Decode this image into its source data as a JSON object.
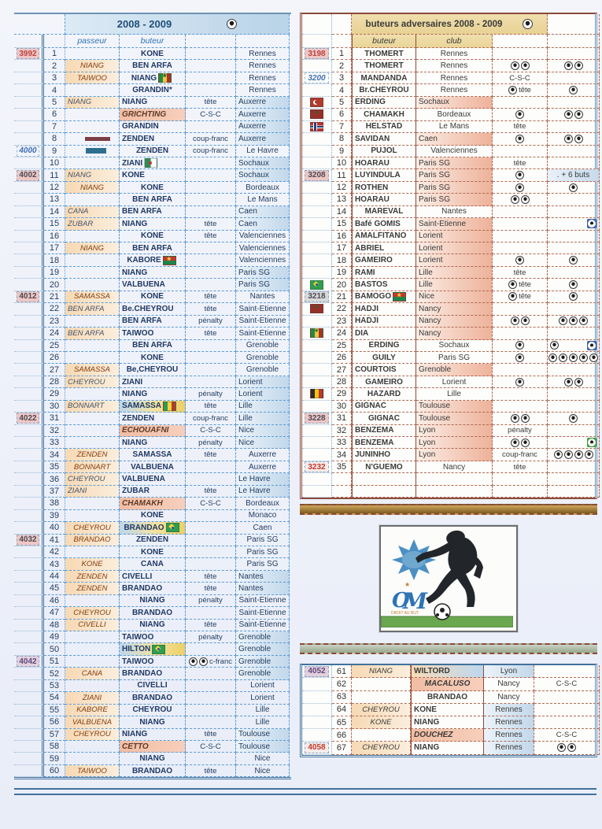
{
  "left_table": {
    "title": "2008 - 2009",
    "headers": {
      "passeur": "passeur",
      "buteur": "buteur"
    },
    "rows": [
      {
        "id": "3992",
        "idc": "r",
        "n": 1,
        "b": "KONE",
        "c": "Rennes"
      },
      {
        "n": 2,
        "p": "NIANG",
        "b": "BEN ARFA",
        "c": "Rennes"
      },
      {
        "n": 3,
        "p": "TAIWOO",
        "b": "NIANG",
        "bf": "sen",
        "c": "Rennes"
      },
      {
        "n": 4,
        "b": "GRANDIN*",
        "c": "Rennes"
      },
      {
        "n": 5,
        "p": "NIANG",
        "pl": 1,
        "b": "NIANG",
        "al": 1,
        "m": "tête",
        "c": "Auxerre",
        "h": 1
      },
      {
        "n": 6,
        "b": "GRICHTING",
        "al": 1,
        "bs": "og",
        "m": "C-S-C",
        "c": "Auxerre",
        "h": 1
      },
      {
        "n": 7,
        "b": "GRANDIN",
        "al": 1,
        "c": "Auxerre",
        "h": 1
      },
      {
        "n": 8,
        "pf": "bar-red",
        "b": "ZENDEN",
        "al": 1,
        "m": "coup-franc",
        "c": "Auxerre",
        "h": 1
      },
      {
        "id": "4000",
        "idc": "b",
        "n": 9,
        "pf": "bar-blue",
        "b": "ZENDEN",
        "m": "coup-franc",
        "c": "Le Havre"
      },
      {
        "n": 10,
        "b": "ZIANI",
        "al": 1,
        "bf": "alg",
        "c": "Sochaux",
        "h": 1
      },
      {
        "id": "4002",
        "idc": "d",
        "n": 11,
        "p": "NIANG",
        "pl": 1,
        "b": "KONE",
        "al": 1,
        "c": "Sochaux",
        "h": 1
      },
      {
        "n": 12,
        "p": "NIANG",
        "b": "KONE",
        "c": "Bordeaux"
      },
      {
        "n": 13,
        "b": "BEN ARFA",
        "c": "Le Mans"
      },
      {
        "n": 14,
        "p": "CANA",
        "pl": 1,
        "b": "BEN ARFA",
        "al": 1,
        "c": "Caen",
        "h": 1
      },
      {
        "n": 15,
        "p": "ZUBAR",
        "pl": 1,
        "b": "NIANG",
        "al": 1,
        "m": "tête",
        "c": "Caen",
        "h": 1
      },
      {
        "n": 16,
        "b": "KONE",
        "m": "tête",
        "c": "Valenciennes"
      },
      {
        "n": 17,
        "p": "NIANG",
        "b": "BEN ARFA",
        "c": "Valenciennes"
      },
      {
        "n": 18,
        "b": "KABORE",
        "bf": "bfa",
        "c": "Valenciennes"
      },
      {
        "n": 19,
        "b": "NIANG",
        "al": 1,
        "c": "Paris SG",
        "h": 1
      },
      {
        "n": 20,
        "b": "VALBUENA",
        "al": 1,
        "c": "Paris SG",
        "h": 1
      },
      {
        "id": "4012",
        "idc": "d",
        "n": 21,
        "p": "SAMASSA",
        "b": "KONE",
        "m": "tête",
        "c": "Nantes"
      },
      {
        "n": 22,
        "p": "BEN ARFA",
        "pl": 1,
        "b": "Be.CHEYROU",
        "al": 1,
        "m": "tête",
        "c": "Saint-Etienne"
      },
      {
        "n": 23,
        "b": "BEN ARFA",
        "al": 1,
        "m": "pénalty",
        "c": "Saint-Etienne"
      },
      {
        "n": 24,
        "p": "BEN ARFA",
        "pl": 1,
        "b": "TAIWOO",
        "al": 1,
        "m": "tête",
        "c": "Saint-Etienne"
      },
      {
        "n": 25,
        "b": "BEN ARFA",
        "c": "Grenoble"
      },
      {
        "n": 26,
        "b": "KONE",
        "c": "Grenoble"
      },
      {
        "n": 27,
        "p": "SAMASSA",
        "b": "Be,CHEYROU",
        "c": "Grenoble"
      },
      {
        "n": 28,
        "p": "CHEYROU",
        "pl": 1,
        "b": "ZIANI",
        "al": 1,
        "c": "Lorient",
        "h": 1
      },
      {
        "n": 29,
        "b": "NIANG",
        "al": 1,
        "m": "pénalty",
        "c": "Lorient",
        "h": 1
      },
      {
        "n": 30,
        "p": "BONNART",
        "pl": 1,
        "b": "SAMASSA",
        "al": 1,
        "bs": "grad",
        "bf": "mli",
        "m": "tête",
        "c": "Lille",
        "h": 1
      },
      {
        "id": "4022",
        "idc": "d",
        "n": 31,
        "b": "ZENDEN",
        "al": 1,
        "m": "coup-franc",
        "c": "Lille",
        "h": 1
      },
      {
        "n": 32,
        "b": "ECHOUAFNI",
        "al": 1,
        "bs": "og",
        "m": "C-S-C",
        "c": "Nice",
        "h": 1
      },
      {
        "n": 33,
        "b": "NIANG",
        "al": 1,
        "m": "pénalty",
        "c": "Nice",
        "h": 1
      },
      {
        "n": 34,
        "p": "ZENDEN",
        "b": "SAMASSA",
        "m": "tête",
        "c": "Auxerre"
      },
      {
        "n": 35,
        "p": "BONNART",
        "b": "VALBUENA",
        "c": "Auxerre"
      },
      {
        "n": 36,
        "p": "CHEYROU",
        "pl": 1,
        "b": "VALBUENA",
        "al": 1,
        "c": "Le Havre",
        "h": 1
      },
      {
        "n": 37,
        "p": "ZIANI",
        "pl": 1,
        "b": "ZUBAR",
        "al": 1,
        "m": "tête",
        "c": "Le Havre",
        "h": 1
      },
      {
        "n": 38,
        "b": "CHAMAKH",
        "al": 1,
        "bs": "og",
        "m": "C-S-C",
        "c": "Bordeaux"
      },
      {
        "n": 39,
        "b": "KONE",
        "c": "Monaco"
      },
      {
        "n": 40,
        "p": "CHEYROU",
        "b": "BRANDAO",
        "bs": "grad",
        "bf": "bra",
        "c": "Caen"
      },
      {
        "id": "4032",
        "idc": "d",
        "n": 41,
        "p": "BRANDAO",
        "b": "ZENDEN",
        "c": "Paris SG"
      },
      {
        "n": 42,
        "b": "KONE",
        "c": "Paris SG"
      },
      {
        "n": 43,
        "p": "KONE",
        "b": "CANA",
        "c": "Paris SG"
      },
      {
        "n": 44,
        "p": "ZENDEN",
        "b": "CIVELLI",
        "al": 1,
        "m": "tête",
        "c": "Nantes",
        "h": 1
      },
      {
        "n": 45,
        "p": "ZENDEN",
        "b": "BRANDAO",
        "al": 1,
        "m": "tête",
        "c": "Nantes",
        "h": 1
      },
      {
        "n": 46,
        "b": "NIANG",
        "m": "pénalty",
        "c": "Saint-Etienne"
      },
      {
        "n": 47,
        "p": "CHEYROU",
        "b": "BRANDAO",
        "c": "Saint-Etienne"
      },
      {
        "n": 48,
        "p": "CIVELLI",
        "b": "NIANG",
        "m": "tête",
        "c": "Saint-Etienne"
      },
      {
        "n": 49,
        "b": "TAIWOO",
        "al": 1,
        "m": "pénalty",
        "c": "Grenoble",
        "h": 1
      },
      {
        "n": 50,
        "b": "HILTON",
        "al": 1,
        "bs": "grad",
        "bf": "bra",
        "c": "Grenoble",
        "h": 1
      },
      {
        "id": "4042",
        "idc": "p",
        "n": 51,
        "b": "TAIWOO",
        "al": 1,
        "m": "c-franc",
        "mb": 2,
        "c": "Grenoble",
        "h": 1
      },
      {
        "n": 52,
        "p": "CANA",
        "b": "BRANDAO",
        "al": 1,
        "c": "Grenoble",
        "h": 1
      },
      {
        "n": 53,
        "b": "CIVELLI",
        "c": "Lorient"
      },
      {
        "n": 54,
        "p": "ZIANI",
        "b": "BRANDAO",
        "c": "Lorient"
      },
      {
        "n": 55,
        "p": "KABORE",
        "b": "CHEYROU",
        "c": "Lille"
      },
      {
        "n": 56,
        "p": "VALBUENA",
        "b": "NIANG",
        "c": "Lille"
      },
      {
        "n": 57,
        "p": "CHEYROU",
        "b": "NIANG",
        "al": 1,
        "m": "tête",
        "c": "Toulouse",
        "h": 1
      },
      {
        "n": 58,
        "b": "CETTO",
        "al": 1,
        "bs": "og",
        "m": "C-S-C",
        "c": "Toulouse",
        "h": 1
      },
      {
        "n": 59,
        "b": "NIANG",
        "c": "Nice"
      },
      {
        "n": 60,
        "p": "TAIWOO",
        "b": "BRANDAO",
        "m": "tête",
        "c": "Nice"
      }
    ]
  },
  "right_table": {
    "title": "buteurs adversaires  2008 - 2009",
    "headers": {
      "buteur": "buteur",
      "club": "club"
    },
    "rows": [
      {
        "id": "3198",
        "idc": "r",
        "n": 1,
        "b": "THOMERT",
        "c": "Rennes"
      },
      {
        "n": 2,
        "b": "THOMERT",
        "c": "Rennes",
        "mb": 2,
        "x": 2
      },
      {
        "id": "3200",
        "idc": "b",
        "n": 3,
        "b": "MANDANDA",
        "bs": "og",
        "c": "Rennes",
        "m": "C-S-C"
      },
      {
        "n": 4,
        "b": "Br.CHEYROU",
        "c": "Rennes",
        "mb": 1,
        "m": "tête",
        "x": 1
      },
      {
        "n": 5,
        "f": "tur",
        "b": "ERDING",
        "bl": 1,
        "c": "Sochaux",
        "h": 1
      },
      {
        "n": 6,
        "f": "mar",
        "b": "CHAMAKH",
        "c": "Bordeaux",
        "mb": 1,
        "x": 2
      },
      {
        "n": 7,
        "f": "nor",
        "b": "HELSTAD",
        "c": "Le Mans",
        "m": "tête"
      },
      {
        "n": 8,
        "b": "SAVIDAN",
        "bl": 1,
        "c": "Caen",
        "h": 1,
        "mb": 1,
        "x": 2
      },
      {
        "n": 9,
        "b": "PUJOL",
        "c": "Valenciennes"
      },
      {
        "n": 10,
        "b": "HOARAU",
        "bl": 1,
        "c": "Paris SG",
        "h": 1,
        "m": "tête"
      },
      {
        "id": "3208",
        "idc": "d",
        "n": 11,
        "b": "LUYINDULA",
        "bl": 1,
        "c": "Paris SG",
        "h": 1,
        "mb": 1,
        "note": ". + 6 buts"
      },
      {
        "n": 12,
        "b": "ROTHEN",
        "bl": 1,
        "c": "Paris SG",
        "h": 1,
        "mb": 1,
        "x": 1
      },
      {
        "n": 13,
        "b": "HOARAU",
        "bl": 1,
        "c": "Paris SG",
        "h": 1,
        "mb": 2
      },
      {
        "n": 14,
        "b": "MAREVAL",
        "c": "Nantes"
      },
      {
        "n": 15,
        "b": "Bafé GOMIS",
        "bl": 1,
        "c": "Saint-Etienne",
        "h": 1,
        "xs": "blue"
      },
      {
        "n": 16,
        "b": "AMALFITANO",
        "bl": 1,
        "c": "Lorient",
        "h": 1
      },
      {
        "n": 17,
        "b": "ABRIEL",
        "bl": 1,
        "c": "Lorient",
        "h": 1
      },
      {
        "n": 18,
        "b": "GAMEIRO",
        "bl": 1,
        "c": "Lorient",
        "h": 1,
        "mb": 1,
        "x": 1
      },
      {
        "n": 19,
        "b": "RAMI",
        "bl": 1,
        "c": "Lille",
        "h": 1,
        "m": "tête"
      },
      {
        "n": 20,
        "f": "bra",
        "b": "BASTOS",
        "bl": 1,
        "c": "Lille",
        "h": 1,
        "mb": 1,
        "m": "tête",
        "x": 1
      },
      {
        "id": "3218",
        "idc": "g",
        "n": 21,
        "b": "BAMOGO",
        "bl": 1,
        "bf": "bfa",
        "c": "Nice",
        "h": 1,
        "mb": 1,
        "m": "tête",
        "x": 1
      },
      {
        "n": 22,
        "f": "mar",
        "b": "HADJI",
        "bl": 1,
        "c": "Nancy",
        "h": 1
      },
      {
        "n": 23,
        "b": "HADJI",
        "bl": 1,
        "c": "Nancy",
        "h": 1,
        "mb": 2,
        "x": 3
      },
      {
        "n": 24,
        "f": "sen",
        "b": "DIA",
        "bl": 1,
        "c": "Nancy",
        "h": 1
      },
      {
        "n": 25,
        "b": "ERDING",
        "c": "Sochaux",
        "mb": 1,
        "x": 1,
        "xs": "blue"
      },
      {
        "n": 26,
        "b": "GUILY",
        "c": "Paris SG",
        "mb": 1,
        "x": 5
      },
      {
        "n": 27,
        "b": "COURTOIS",
        "bl": 1,
        "c": "Grenoble",
        "h": 1
      },
      {
        "n": 28,
        "b": "GAMEIRO",
        "c": "Lorient",
        "mb": 1,
        "x": 2
      },
      {
        "n": 29,
        "f": "bel",
        "b": "HAZARD",
        "c": "Lille"
      },
      {
        "n": 30,
        "b": "GIGNAC",
        "bl": 1,
        "c": "Toulouse",
        "h": 1
      },
      {
        "id": "3228",
        "idc": "d",
        "n": 31,
        "b": "GIGNAC",
        "c": "Toulouse",
        "h": 1,
        "mb": 2,
        "x": 1
      },
      {
        "n": 32,
        "b": "BENZEMA",
        "bl": 1,
        "c": "Lyon",
        "h": 1,
        "m": "pénalty"
      },
      {
        "n": 33,
        "b": "BENZEMA",
        "bl": 1,
        "c": "Lyon",
        "h": 1,
        "mb": 2,
        "xs": "green"
      },
      {
        "n": 34,
        "b": "JUNINHO",
        "bl": 1,
        "c": "Lyon",
        "h": 1,
        "m": "coup-franc",
        "x": 4
      },
      {
        "id": "3232",
        "idc": "rw",
        "n": 35,
        "b": "N'GUEMO",
        "c": "Nancy",
        "m": "tête"
      }
    ]
  },
  "bottom_table": {
    "rows": [
      {
        "id": "4052",
        "idc": "p",
        "n": 61,
        "p": "NIANG",
        "b": "WILTORD",
        "bl": 1,
        "bs": "grad2",
        "c": "Lyon",
        "h": 1
      },
      {
        "n": 62,
        "b": "MACALUSO",
        "bs": "og",
        "c": "Nancy",
        "m": "C-S-C"
      },
      {
        "n": 63,
        "b": "BRANDAO",
        "c": "Nancy"
      },
      {
        "n": 64,
        "p": "CHEYROU",
        "b": "KONE",
        "bl": 1,
        "c": "Rennes",
        "h": 1
      },
      {
        "n": 65,
        "p": "KONE",
        "b": "NIANG",
        "bl": 1,
        "c": "Rennes",
        "h": 1
      },
      {
        "n": 66,
        "b": "DOUCHEZ",
        "bl": 1,
        "bs": "og",
        "c": "Rennes",
        "h": 1,
        "m": "C-S-C"
      },
      {
        "id": "4058",
        "idc": "rw",
        "n": 67,
        "p": "CHEYROU",
        "b": "NIANG",
        "bl": 1,
        "c": "Rennes",
        "h": 1,
        "mb": 2
      }
    ]
  },
  "picture": {
    "club_motto": "DROIT AU BUT",
    "club_initials": "OM"
  },
  "colors": {
    "left_accent": "#2e74b5",
    "right_accent": "#8b4a3b",
    "passeur_bg": "#f7d9b4",
    "own_goal_bg": "#f2bda3",
    "home_club_left": "#c2d8eb",
    "home_club_right": "#eeb29a",
    "header_tan": "#e7d193",
    "header_blue": "#b9d3e8"
  }
}
